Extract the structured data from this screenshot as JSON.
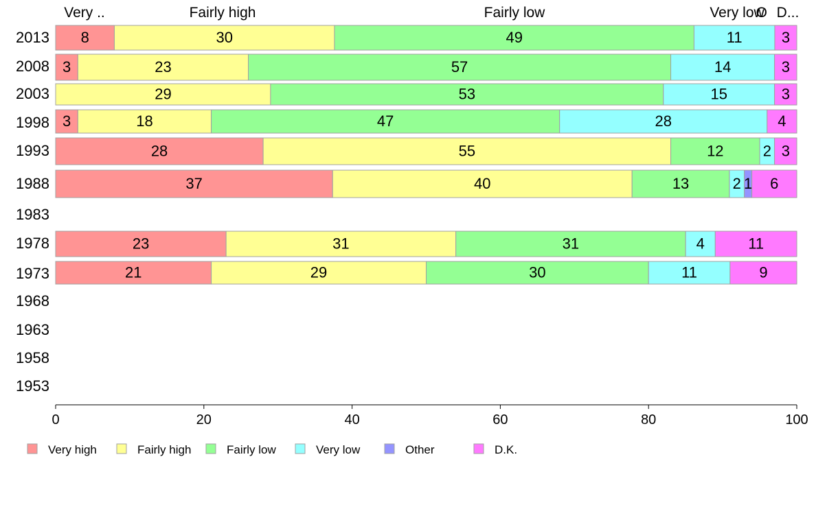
{
  "chart_data": {
    "type": "bar",
    "orientation": "horizontal",
    "stacked": true,
    "categories": [
      "2013",
      "2008",
      "2003",
      "1998",
      "1993",
      "1988",
      "1983",
      "1978",
      "1973",
      "1968",
      "1963",
      "1958",
      "1953"
    ],
    "top_labels": [
      "Very ..",
      "Fairly high",
      "Fairly low",
      "Very low",
      "O",
      "D..."
    ],
    "series": [
      {
        "name": "Very high",
        "color": "#ff9494",
        "values": [
          8,
          3,
          0,
          3,
          28,
          37,
          null,
          23,
          21,
          null,
          null,
          null,
          null
        ]
      },
      {
        "name": "Fairly high",
        "color": "#ffff94",
        "values": [
          30,
          23,
          29,
          18,
          55,
          40,
          null,
          31,
          29,
          null,
          null,
          null,
          null
        ]
      },
      {
        "name": "Fairly low",
        "color": "#94ff94",
        "values": [
          49,
          57,
          53,
          47,
          12,
          13,
          null,
          31,
          30,
          null,
          null,
          null,
          null
        ]
      },
      {
        "name": "Very low",
        "color": "#94ffff",
        "values": [
          11,
          14,
          15,
          28,
          2,
          2,
          null,
          4,
          11,
          null,
          null,
          null,
          null
        ]
      },
      {
        "name": "Other",
        "color": "#9494ff",
        "values": [
          0,
          0,
          0,
          0,
          0,
          1,
          null,
          0,
          0,
          null,
          null,
          null,
          null
        ]
      },
      {
        "name": "D.K.",
        "color": "#ff7aff",
        "values": [
          3,
          3,
          3,
          4,
          3,
          6,
          null,
          11,
          9,
          null,
          null,
          null,
          null
        ]
      }
    ],
    "xlim": [
      0,
      100
    ],
    "x_ticks": [
      "0",
      "20",
      "40",
      "60",
      "80",
      "100"
    ],
    "grid": false,
    "legend_position": "bottom-left"
  }
}
